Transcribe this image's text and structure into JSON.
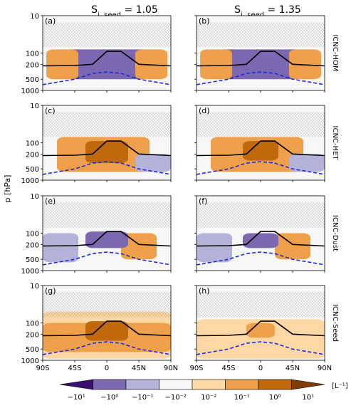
{
  "chart_data": [
    {
      "type": "heatmap",
      "panel": "(a)",
      "column_title": "S_i,seed = 1.05",
      "row_label": "ICNC-HOM",
      "ylabel": "p [hPa]",
      "xlabel": "",
      "xlim": [
        -90,
        90
      ],
      "ylim": [
        1000,
        10
      ],
      "yscale": "log",
      "x_ticks": [
        -90,
        -45,
        0,
        45,
        90
      ],
      "y_ticks": [
        10,
        100,
        200,
        500,
        1000
      ],
      "tropopause_line": {
        "x": [
          -90,
          -45,
          -20,
          0,
          20,
          45,
          90
        ],
        "p": [
          220,
          215,
          200,
          90,
          90,
          200,
          220
        ]
      },
      "freezing_line": {
        "x": [
          -90,
          -45,
          -20,
          0,
          20,
          45,
          90
        ],
        "p": [
          700,
          500,
          350,
          320,
          350,
          500,
          700
        ]
      },
      "regions": [
        {
          "level": "-10^0",
          "x": [
            -60,
            60
          ],
          "p": [
            80,
            500
          ]
        },
        {
          "level": "10^-1",
          "x": [
            -85,
            -40
          ],
          "p": [
            80,
            500
          ]
        },
        {
          "level": "10^-1",
          "x": [
            40,
            85
          ],
          "p": [
            80,
            500
          ]
        }
      ]
    },
    {
      "type": "heatmap",
      "panel": "(b)",
      "column_title": "S_i,seed = 1.35",
      "row_label": "ICNC-HOM",
      "xlim": [
        -90,
        90
      ],
      "ylim": [
        1000,
        10
      ],
      "yscale": "log",
      "tropopause_line": {
        "x": [
          -90,
          -45,
          -20,
          0,
          20,
          45,
          90
        ],
        "p": [
          220,
          215,
          200,
          90,
          90,
          200,
          220
        ]
      },
      "freezing_line": {
        "x": [
          -90,
          -45,
          -20,
          0,
          20,
          45,
          90
        ],
        "p": [
          700,
          500,
          350,
          320,
          350,
          500,
          700
        ]
      },
      "regions": [
        {
          "level": "-10^0",
          "x": [
            -60,
            60
          ],
          "p": [
            80,
            500
          ]
        },
        {
          "level": "10^-1",
          "x": [
            -85,
            -40
          ],
          "p": [
            80,
            500
          ]
        },
        {
          "level": "10^-1",
          "x": [
            40,
            85
          ],
          "p": [
            80,
            500
          ]
        }
      ]
    },
    {
      "type": "heatmap",
      "panel": "(c)",
      "row_label": "ICNC-HET",
      "xlim": [
        -90,
        90
      ],
      "ylim": [
        1000,
        10
      ],
      "yscale": "log",
      "regions": [
        {
          "level": "10^0",
          "x": [
            -30,
            30
          ],
          "p": [
            90,
            350
          ]
        },
        {
          "level": "10^-1",
          "x": [
            -70,
            60
          ],
          "p": [
            70,
            600
          ]
        },
        {
          "level": "-10^-1",
          "x": [
            40,
            90
          ],
          "p": [
            200,
            600
          ]
        }
      ]
    },
    {
      "type": "heatmap",
      "panel": "(d)",
      "row_label": "ICNC-HET",
      "xlim": [
        -90,
        90
      ],
      "ylim": [
        1000,
        10
      ],
      "yscale": "log",
      "regions": [
        {
          "level": "10^0",
          "x": [
            -25,
            25
          ],
          "p": [
            90,
            300
          ]
        },
        {
          "level": "10^-1",
          "x": [
            -70,
            60
          ],
          "p": [
            70,
            600
          ]
        },
        {
          "level": "-10^-1",
          "x": [
            40,
            90
          ],
          "p": [
            200,
            600
          ]
        }
      ]
    },
    {
      "type": "heatmap",
      "panel": "(e)",
      "row_label": "ICNC-Dust",
      "xlim": [
        -90,
        90
      ],
      "ylim": [
        1000,
        10
      ],
      "yscale": "log",
      "regions": [
        {
          "level": "-10^0",
          "x": [
            -30,
            30
          ],
          "p": [
            90,
            250
          ]
        },
        {
          "level": "-10^-1",
          "x": [
            -90,
            -40
          ],
          "p": [
            100,
            600
          ]
        },
        {
          "level": "10^-1",
          "x": [
            20,
            70
          ],
          "p": [
            100,
            500
          ]
        }
      ]
    },
    {
      "type": "heatmap",
      "panel": "(f)",
      "row_label": "ICNC-Dust",
      "xlim": [
        -90,
        90
      ],
      "ylim": [
        1000,
        10
      ],
      "yscale": "log",
      "regions": [
        {
          "level": "-10^0",
          "x": [
            -25,
            25
          ],
          "p": [
            100,
            250
          ]
        },
        {
          "level": "-10^-1",
          "x": [
            -90,
            -40
          ],
          "p": [
            100,
            600
          ]
        },
        {
          "level": "10^-1",
          "x": [
            20,
            70
          ],
          "p": [
            100,
            500
          ]
        }
      ]
    },
    {
      "type": "heatmap",
      "panel": "(g)",
      "row_label": "ICNC-Seed",
      "xlim": [
        -90,
        90
      ],
      "ylim": [
        1000,
        10
      ],
      "yscale": "log",
      "regions": [
        {
          "level": "10^0",
          "x": [
            -30,
            30
          ],
          "p": [
            90,
            300
          ]
        },
        {
          "level": "10^-1",
          "x": [
            -90,
            90
          ],
          "p": [
            100,
            600
          ]
        },
        {
          "level": "10^-2",
          "x": [
            -90,
            90
          ],
          "p": [
            50,
            900
          ]
        }
      ]
    },
    {
      "type": "heatmap",
      "panel": "(h)",
      "row_label": "ICNC-Seed",
      "xlim": [
        -90,
        90
      ],
      "ylim": [
        1000,
        10
      ],
      "yscale": "log",
      "regions": [
        {
          "level": "10^-1",
          "x": [
            -20,
            20
          ],
          "p": [
            100,
            250
          ]
        },
        {
          "level": "10^-2",
          "x": [
            -90,
            90
          ],
          "p": [
            80,
            900
          ]
        }
      ]
    }
  ],
  "panels": [
    {
      "id": "a",
      "label": "(a)"
    },
    {
      "id": "b",
      "label": "(b)"
    },
    {
      "id": "c",
      "label": "(c)"
    },
    {
      "id": "d",
      "label": "(d)"
    },
    {
      "id": "e",
      "label": "(e)"
    },
    {
      "id": "f",
      "label": "(f)"
    },
    {
      "id": "g",
      "label": "(g)"
    },
    {
      "id": "h",
      "label": "(h)"
    }
  ],
  "column_titles": {
    "left": {
      "main": "S",
      "sub": "i, seed",
      "value": " = 1.05"
    },
    "right": {
      "main": "S",
      "sub": "i, seed",
      "value": " = 1.35"
    }
  },
  "row_labels": [
    "ICNC-HOM",
    "ICNC-HET",
    "ICNC-Dust",
    "ICNC-Seed"
  ],
  "y_axis": {
    "title": "p [hPa]",
    "tick_labels": [
      "10",
      "100",
      "200",
      "500",
      "1000"
    ]
  },
  "x_axis": {
    "tick_labels": [
      "90S",
      "45S",
      "0",
      "45N",
      "90N"
    ]
  },
  "colorbar": {
    "unit_label": "[L⁻¹]",
    "tick_labels": [
      "−10¹",
      "−10⁰",
      "−10⁻¹",
      "−10⁻²",
      "10⁻²",
      "10⁻¹",
      "10⁰",
      "10¹"
    ],
    "colors": [
      "#3b0f70",
      "#7b68b0",
      "#b5b2d9",
      "#f7f7f7",
      "#fdd8a5",
      "#eea04b",
      "#c0690c",
      "#7f3b08"
    ]
  },
  "colors": {
    "tropopause_line": "#000000",
    "freezing_line": "#1f28d8",
    "hatching": "#444444"
  }
}
